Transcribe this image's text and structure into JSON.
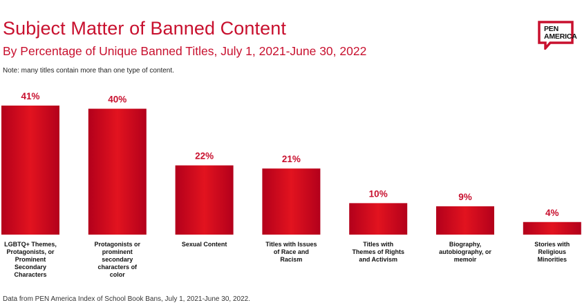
{
  "header": {
    "title": "Subject Matter of Banned Content",
    "subtitle": "By Percentage of Unique Banned Titles, July 1, 2021-June 30, 2022",
    "note": "Note: many titles contain more than one type of content."
  },
  "logo": {
    "line1": "PEN",
    "line2": "AMERICA"
  },
  "footer": {
    "source": "Data from PEN America Index of School Book Bans, July 1, 2021-June 30, 2022."
  },
  "colors": {
    "accent": "#c8102e",
    "bar_light": "#e2131f",
    "bar_dark": "#b3001b"
  },
  "chart_data": {
    "type": "bar",
    "categories": [
      "LGBTQ+ Themes, Protagonists, or Prominent Secondary Characters",
      "Protagonists or prominent secondary characters of color",
      "Sexual Content",
      "Titles with Issues of Race and Racism",
      "Titles with Themes of Rights and Activism",
      "Biography, autobiography, or memoir",
      "Stories with Religious Minorities"
    ],
    "category_lines": [
      [
        "LGBTQ+ Themes,",
        "Protagonists, or",
        "Prominent",
        "Secondary",
        "Characters"
      ],
      [
        "Protagonists or",
        "prominent",
        "secondary",
        "characters of",
        "color"
      ],
      [
        "Sexual Content"
      ],
      [
        "Titles with Issues",
        "of Race and",
        "Racism"
      ],
      [
        "Titles with",
        "Themes of Rights",
        "and Activism"
      ],
      [
        "Biography,",
        "autobiography, or",
        "memoir"
      ],
      [
        "Stories with",
        "Religious",
        "Minorities"
      ]
    ],
    "values": [
      41,
      40,
      22,
      21,
      10,
      9,
      4
    ],
    "value_labels": [
      "41%",
      "40%",
      "22%",
      "21%",
      "10%",
      "9%",
      "4%"
    ],
    "ylim": [
      0,
      41
    ],
    "grid": false,
    "legend": "none"
  }
}
